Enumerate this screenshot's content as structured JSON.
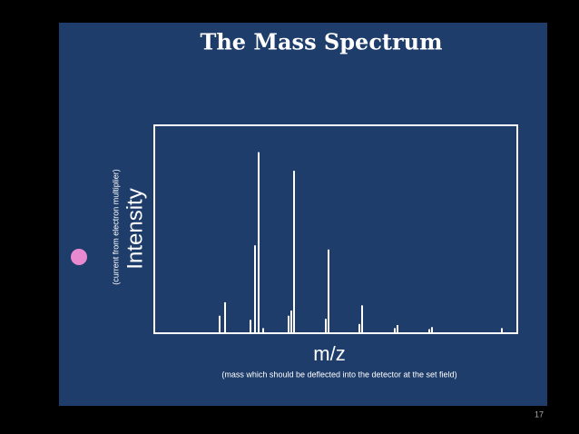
{
  "slide": {
    "page_number": "17"
  },
  "chart_data": {
    "type": "bar",
    "title": "The Mass Spectrum",
    "y_label": "Intensity",
    "y_sublabel": "(current from electron multiplier)",
    "x_label": "m/z",
    "x_sublabel": "(mass which should be deflected into the detector at the set field)",
    "color": "#ffffff",
    "x": [
      18,
      19.5,
      26.5,
      27.75,
      28.75,
      30,
      37,
      37.75,
      38.5,
      47.25,
      48,
      56.5,
      57.25,
      66.25,
      67,
      75.75,
      76.5,
      95.75
    ],
    "values": [
      8,
      14.5,
      6,
      42,
      87,
      2,
      8,
      10.5,
      78,
      6.5,
      40,
      4,
      13,
      2,
      3.5,
      1.5,
      2.5,
      2
    ],
    "xlim": [
      0,
      100
    ],
    "ylim": [
      0,
      100
    ]
  }
}
